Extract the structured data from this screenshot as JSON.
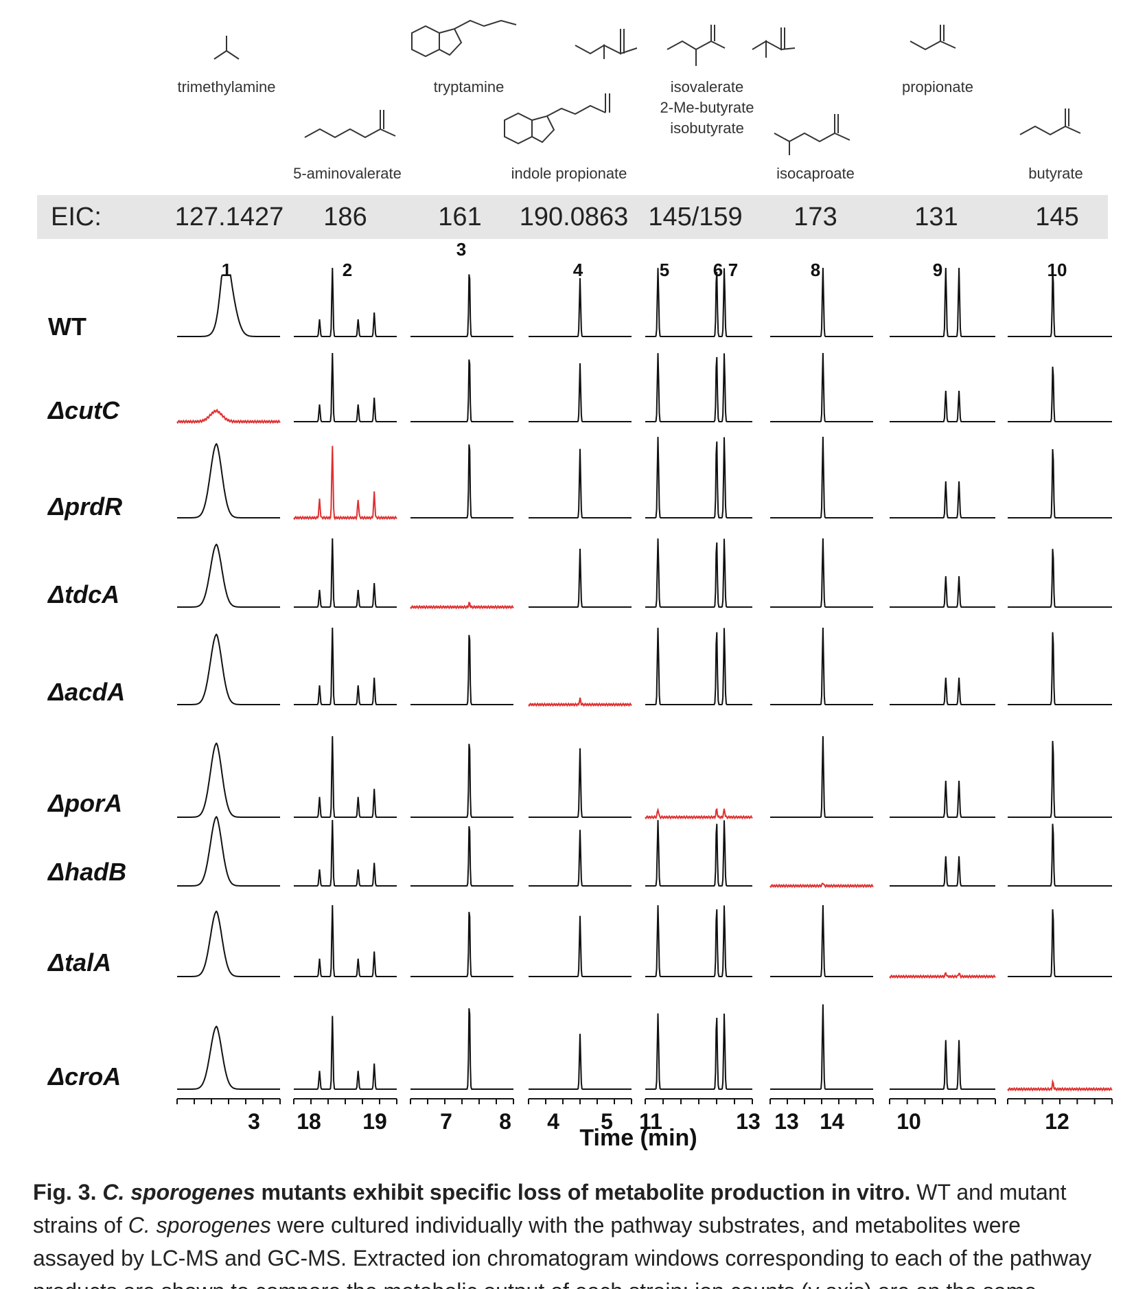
{
  "compounds": {
    "trimethylamine": "trimethylamine",
    "tryptamine": "tryptamine",
    "isovalerate": "isovalerate",
    "me_butyrate": "2-Me-butyrate",
    "isobutyrate": "isobutyrate",
    "propionate": "propionate",
    "aminovalerate": "5-aminovalerate",
    "indole_propionate": "indole propionate",
    "isocaproate": "isocaproate",
    "butyrate": "butyrate"
  },
  "eic": {
    "label": "EIC:",
    "values": [
      "127.1427",
      "186",
      "161",
      "190.0863",
      "145/159",
      "173",
      "131",
      "145"
    ]
  },
  "chart_data": {
    "type": "line",
    "title": "",
    "xlabel": "Time (min)",
    "ylabel": "",
    "grid": false,
    "peak_numbers": [
      "1",
      "2",
      "3",
      "4",
      "5",
      "6",
      "7",
      "8",
      "9",
      "10"
    ],
    "strains": [
      "WT",
      "ΔcutC",
      "ΔprdR",
      "ΔtdcA",
      "ΔacdA",
      "ΔporA",
      "ΔhadB",
      "ΔtalA",
      "ΔcroA"
    ],
    "panels": [
      {
        "eic": "127.1427",
        "xlim": [
          2.0,
          3.3
        ],
        "ticks": [
          "3"
        ],
        "peaks": [
          2.45,
          2.6
        ],
        "lost_in": "ΔcutC",
        "heights": [
          0.85,
          0.15,
          0.87,
          0.87,
          0.87,
          0.87,
          1.0,
          0.87,
          0.67
        ]
      },
      {
        "eic": "186",
        "xlim": [
          17.9,
          19.5
        ],
        "ticks": [
          "18",
          "19"
        ],
        "peaks": [
          18.3,
          18.5,
          18.9,
          19.15
        ],
        "lost_in": "ΔprdR",
        "heights": [
          1.0,
          1.0,
          0.9,
          1.0,
          1.0,
          1.0,
          1.0,
          1.0,
          0.82
        ]
      },
      {
        "eic": "161",
        "xlim": [
          6.0,
          8.1
        ],
        "ticks": [
          "7",
          "8"
        ],
        "peaks": [
          7.2
        ],
        "lost_in": "ΔtdcA",
        "heights": [
          1.0,
          1.0,
          1.0,
          0.06,
          1.0,
          1.0,
          1.0,
          1.0,
          1.0
        ]
      },
      {
        "eic": "190.0863",
        "xlim": [
          3.6,
          5.4
        ],
        "ticks": [
          "4",
          "5"
        ],
        "peaks": [
          4.5
        ],
        "lost_in": "ΔacdA",
        "heights": [
          0.85,
          0.85,
          0.85,
          0.85,
          0.08,
          0.85,
          0.85,
          0.85,
          0.62
        ]
      },
      {
        "eic": "145/159",
        "xlim": [
          11.0,
          13.1
        ],
        "ticks": [
          "11",
          "13"
        ],
        "peaks": [
          11.25,
          12.4,
          12.55
        ],
        "lost_in": "ΔporA",
        "heights": [
          1.0,
          1.0,
          1.0,
          1.0,
          1.0,
          0.1,
          1.0,
          1.0,
          0.85
        ]
      },
      {
        "eic": "173",
        "xlim": [
          12.9,
          14.5
        ],
        "ticks": [
          "13",
          "14"
        ],
        "peaks": [
          13.72
        ],
        "lost_in": "ΔhadB",
        "heights": [
          1.0,
          1.0,
          1.0,
          1.0,
          1.0,
          1.0,
          0.05,
          1.0,
          0.95
        ]
      },
      {
        "eic": "131",
        "xlim": [
          9.8,
          11.4
        ],
        "ticks": [
          "10"
        ],
        "peaks": [
          10.65,
          10.85
        ],
        "lost_in": "ΔtalA",
        "heights": [
          1.0,
          0.45,
          0.45,
          0.45,
          0.35,
          0.45,
          0.45,
          0.05,
          0.55
        ]
      },
      {
        "eic": "145",
        "xlim": [
          11.4,
          12.9
        ],
        "ticks": [
          "12"
        ],
        "peaks": [
          12.05
        ],
        "lost_in": "ΔcroA",
        "heights": [
          1.0,
          0.85,
          0.9,
          0.9,
          1.0,
          1.0,
          1.0,
          1.0,
          0.08
        ]
      }
    ]
  },
  "caption": {
    "fig": "Fig. 3.",
    "species": "C. sporogenes",
    "title_rest": "mutants exhibit specific loss of metabolite production in vitro.",
    "text1": "WT and mutant strains of",
    "species2": "C. sporogenes",
    "text2": "were cultured individually with the pathway substrates, and metabolites were assayed by LC-MS and GC-MS. Extracted ion chromatogram windows corresponding to each of the pathway products are shown to compare the metabolic output of each strain; ion counts (y axis) are on the same"
  },
  "colors": {
    "trace": "#111111",
    "lost": "#e03030",
    "band": "#e6e6e6"
  }
}
